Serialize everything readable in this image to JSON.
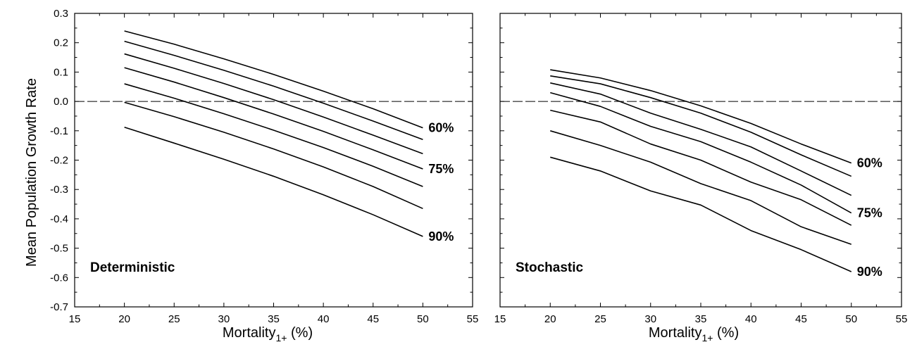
{
  "figure": {
    "ylabel": "Mean Population Growth Rate",
    "xlabel_main": "Mortality",
    "xlabel_sub": "1+",
    "xlabel_suffix": " (%)"
  },
  "chart_data": [
    {
      "type": "line",
      "panel_label": "Deterministic",
      "xlim": [
        15,
        55
      ],
      "ylim": [
        -0.7,
        0.3
      ],
      "xticks": [
        15,
        20,
        25,
        30,
        35,
        40,
        45,
        50,
        55
      ],
      "yticks": [
        -0.7,
        -0.6,
        -0.5,
        -0.4,
        -0.3,
        -0.2,
        -0.1,
        0.0,
        0.1,
        0.2,
        0.3
      ],
      "ytick_labels": [
        "-0.7",
        "-0.6",
        "-0.5",
        "-0.4",
        "-0.3",
        "-0.2",
        "-0.1",
        "0.0",
        "0.1",
        "0.2",
        "0.3"
      ],
      "reference_line": {
        "y": 0.0,
        "style": "dashed"
      },
      "x": [
        20,
        25,
        30,
        35,
        40,
        45,
        50
      ],
      "series": [
        {
          "values": [
            0.24,
            0.195,
            0.145,
            0.092,
            0.035,
            -0.025,
            -0.09
          ]
        },
        {
          "values": [
            0.205,
            0.157,
            0.106,
            0.052,
            -0.006,
            -0.067,
            -0.13
          ]
        },
        {
          "values": [
            0.162,
            0.113,
            0.061,
            0.006,
            -0.053,
            -0.115,
            -0.178
          ]
        },
        {
          "values": [
            0.115,
            0.066,
            0.013,
            -0.043,
            -0.102,
            -0.165,
            -0.23
          ]
        },
        {
          "values": [
            0.06,
            0.011,
            -0.042,
            -0.098,
            -0.157,
            -0.221,
            -0.29
          ]
        },
        {
          "values": [
            -0.003,
            -0.052,
            -0.105,
            -0.162,
            -0.223,
            -0.29,
            -0.365
          ]
        },
        {
          "values": [
            -0.088,
            -0.142,
            -0.197,
            -0.255,
            -0.318,
            -0.386,
            -0.46
          ]
        }
      ],
      "curve_labels": [
        {
          "text": "60%",
          "x": 50,
          "y": -0.09
        },
        {
          "text": "75%",
          "x": 50,
          "y": -0.23
        },
        {
          "text": "90%",
          "x": 50,
          "y": -0.46
        }
      ]
    },
    {
      "type": "line",
      "panel_label": "Stochastic",
      "xlim": [
        15,
        55
      ],
      "ylim": [
        -0.7,
        0.3
      ],
      "xticks": [
        15,
        20,
        25,
        30,
        35,
        40,
        45,
        50,
        55
      ],
      "reference_line": {
        "y": 0.0,
        "style": "dashed"
      },
      "x": [
        20,
        25,
        30,
        35,
        40,
        45,
        50
      ],
      "series": [
        {
          "values": [
            0.108,
            0.08,
            0.037,
            -0.015,
            -0.075,
            -0.145,
            -0.21
          ]
        },
        {
          "values": [
            0.087,
            0.06,
            0.013,
            -0.04,
            -0.105,
            -0.182,
            -0.255
          ]
        },
        {
          "values": [
            0.063,
            0.025,
            -0.04,
            -0.095,
            -0.155,
            -0.237,
            -0.32
          ]
        },
        {
          "values": [
            0.03,
            -0.017,
            -0.085,
            -0.137,
            -0.207,
            -0.285,
            -0.38
          ]
        },
        {
          "values": [
            -0.03,
            -0.07,
            -0.145,
            -0.2,
            -0.275,
            -0.335,
            -0.422
          ]
        },
        {
          "values": [
            -0.1,
            -0.15,
            -0.207,
            -0.28,
            -0.338,
            -0.427,
            -0.487
          ]
        },
        {
          "values": [
            -0.19,
            -0.237,
            -0.305,
            -0.353,
            -0.44,
            -0.505,
            -0.58
          ]
        }
      ],
      "curve_labels": [
        {
          "text": "60%",
          "x": 50,
          "y": -0.21
        },
        {
          "text": "75%",
          "x": 50,
          "y": -0.38
        },
        {
          "text": "90%",
          "x": 50,
          "y": -0.58
        }
      ]
    }
  ]
}
